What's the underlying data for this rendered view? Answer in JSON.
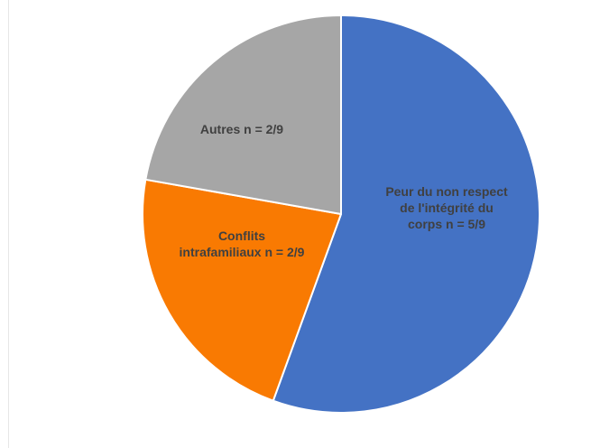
{
  "chart_data": {
    "type": "pie",
    "title": "",
    "slices": [
      {
        "category": "Peur du non respect de l'intégrité du corps",
        "value": 5,
        "label_lines": [
          "Peur du non respect",
          "de l'intégrité du",
          "corps n = 5/9"
        ],
        "color": "#4472C4"
      },
      {
        "category": "Conflits intrafamiliaux",
        "value": 2,
        "label_lines": [
          "Conflits",
          "intrafamiliaux n = 2/9"
        ],
        "color": "#F97A02"
      },
      {
        "category": "Autres",
        "value": 2,
        "label_lines": [
          "Autres n = 2/9"
        ],
        "color": "#A6A6A6"
      }
    ],
    "total": 9,
    "start": "12 o'clock",
    "direction": "clockwise",
    "legend": "none",
    "label_color": "#404040"
  }
}
